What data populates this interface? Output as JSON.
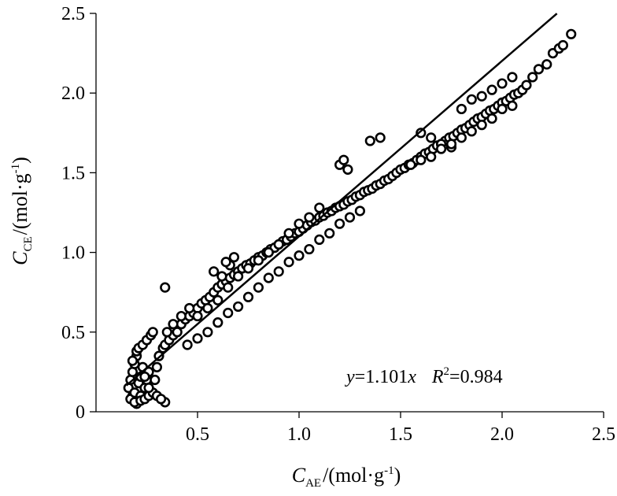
{
  "chart_data": {
    "type": "scatter",
    "xlabel": {
      "symbol": "C",
      "subscript": "AE",
      "unit": "/(mol·g",
      "exponent": "-1",
      "close": ")"
    },
    "ylabel": {
      "symbol": "C",
      "subscript": "CE",
      "unit": "/(mol·g",
      "exponent": "-1",
      "close": ")"
    },
    "xlim": [
      0,
      2.5
    ],
    "ylim": [
      0,
      2.5
    ],
    "x_ticks": [
      0.5,
      1.0,
      1.5,
      2.0,
      2.5
    ],
    "x_tick_labels": [
      "0.5",
      "1.0",
      "1.5",
      "2.0",
      "2.5"
    ],
    "y_ticks": [
      0,
      0.5,
      1.0,
      1.5,
      2.0,
      2.5
    ],
    "y_tick_labels": [
      "0",
      "0.5",
      "1.0",
      "1.5",
      "2.0",
      "2.5"
    ],
    "grid": false,
    "legend": "none",
    "fit_line": {
      "slope": 1.101,
      "x_range": [
        0.15,
        2.27
      ]
    },
    "annotation": {
      "y_var": "y",
      "eq": "=1.101",
      "x_var": "x",
      "r_var": "R",
      "r_exp": "2",
      "r_val": "=0.984"
    },
    "points_x": [
      0.16,
      0.17,
      0.18,
      0.19,
      0.2,
      0.18,
      0.21,
      0.22,
      0.23,
      0.17,
      0.19,
      0.2,
      0.22,
      0.24,
      0.25,
      0.26,
      0.18,
      0.2,
      0.21,
      0.23,
      0.25,
      0.27,
      0.28,
      0.19,
      0.22,
      0.24,
      0.26,
      0.29,
      0.3,
      0.31,
      0.33,
      0.34,
      0.36,
      0.38,
      0.4,
      0.42,
      0.44,
      0.46,
      0.48,
      0.5,
      0.52,
      0.54,
      0.56,
      0.58,
      0.6,
      0.62,
      0.64,
      0.66,
      0.68,
      0.7,
      0.72,
      0.74,
      0.76,
      0.78,
      0.8,
      0.82,
      0.84,
      0.86,
      0.88,
      0.9,
      0.92,
      0.94,
      0.96,
      0.98,
      1.0,
      1.02,
      1.04,
      1.06,
      1.08,
      1.1,
      1.12,
      1.14,
      1.16,
      1.18,
      1.2,
      1.22,
      1.24,
      1.26,
      1.28,
      1.3,
      1.32,
      1.34,
      1.36,
      1.38,
      1.4,
      1.42,
      1.44,
      1.46,
      1.48,
      1.5,
      1.52,
      1.54,
      1.56,
      1.58,
      1.6,
      1.62,
      1.64,
      1.66,
      1.68,
      1.7,
      1.72,
      1.74,
      1.76,
      1.78,
      1.8,
      1.82,
      1.84,
      1.86,
      1.88,
      1.9,
      1.92,
      1.94,
      1.96,
      1.98,
      2.0,
      2.02,
      2.04,
      2.06,
      2.08,
      2.1,
      2.12,
      2.15,
      2.18,
      2.22,
      2.25,
      2.28,
      2.3,
      2.34,
      0.45,
      0.5,
      0.55,
      0.6,
      0.65,
      0.7,
      0.75,
      0.8,
      0.85,
      0.9,
      0.95,
      1.0,
      1.05,
      1.1,
      1.15,
      1.2,
      1.25,
      1.3,
      0.5,
      0.55,
      0.6,
      0.65,
      0.7,
      0.75,
      0.8,
      0.85,
      0.9,
      0.95,
      1.0,
      1.05,
      1.1,
      0.35,
      0.38,
      0.42,
      0.46,
      0.62,
      0.66,
      0.58,
      0.64,
      0.68,
      1.2,
      1.22,
      1.24,
      1.35,
      1.4,
      1.6,
      1.65,
      1.7,
      1.75,
      1.8,
      1.85,
      1.9,
      1.95,
      2.0,
      2.05,
      1.55,
      1.6,
      1.65,
      1.7,
      1.75,
      1.8,
      1.85,
      1.9,
      1.95,
      2.0,
      2.05,
      0.34,
      0.34,
      0.28,
      0.3,
      0.32,
      0.26,
      0.24
    ],
    "points_y": [
      0.15,
      0.2,
      0.25,
      0.3,
      0.35,
      0.1,
      0.18,
      0.22,
      0.28,
      0.08,
      0.12,
      0.05,
      0.1,
      0.15,
      0.2,
      0.25,
      0.32,
      0.38,
      0.4,
      0.42,
      0.45,
      0.48,
      0.5,
      0.06,
      0.07,
      0.08,
      0.1,
      0.2,
      0.28,
      0.35,
      0.4,
      0.42,
      0.45,
      0.48,
      0.5,
      0.55,
      0.58,
      0.6,
      0.62,
      0.65,
      0.68,
      0.7,
      0.72,
      0.75,
      0.78,
      0.8,
      0.82,
      0.84,
      0.86,
      0.88,
      0.9,
      0.92,
      0.93,
      0.95,
      0.97,
      0.98,
      1.0,
      1.02,
      1.03,
      1.05,
      1.07,
      1.08,
      1.1,
      1.12,
      1.13,
      1.15,
      1.17,
      1.19,
      1.2,
      1.22,
      1.23,
      1.25,
      1.26,
      1.28,
      1.29,
      1.3,
      1.32,
      1.33,
      1.35,
      1.36,
      1.38,
      1.39,
      1.4,
      1.42,
      1.43,
      1.45,
      1.46,
      1.48,
      1.5,
      1.52,
      1.53,
      1.55,
      1.56,
      1.58,
      1.6,
      1.62,
      1.63,
      1.65,
      1.67,
      1.68,
      1.7,
      1.72,
      1.73,
      1.75,
      1.77,
      1.78,
      1.8,
      1.82,
      1.84,
      1.85,
      1.87,
      1.89,
      1.9,
      1.92,
      1.94,
      1.95,
      1.97,
      1.99,
      2.0,
      2.02,
      2.05,
      2.1,
      2.15,
      2.18,
      2.25,
      2.28,
      2.3,
      2.37,
      0.42,
      0.46,
      0.5,
      0.56,
      0.62,
      0.66,
      0.72,
      0.78,
      0.84,
      0.88,
      0.94,
      0.98,
      1.02,
      1.08,
      1.12,
      1.18,
      1.22,
      1.26,
      0.6,
      0.65,
      0.7,
      0.78,
      0.85,
      0.9,
      0.95,
      1.0,
      1.05,
      1.12,
      1.18,
      1.22,
      1.28,
      0.5,
      0.55,
      0.6,
      0.65,
      0.85,
      0.92,
      0.88,
      0.94,
      0.97,
      1.55,
      1.58,
      1.52,
      1.7,
      1.72,
      1.75,
      1.72,
      1.68,
      1.66,
      1.9,
      1.96,
      1.98,
      2.02,
      2.06,
      2.1,
      1.55,
      1.58,
      1.6,
      1.65,
      1.68,
      1.72,
      1.76,
      1.8,
      1.84,
      1.9,
      1.92,
      0.78,
      0.06,
      0.12,
      0.1,
      0.08,
      0.15,
      0.22
    ]
  }
}
